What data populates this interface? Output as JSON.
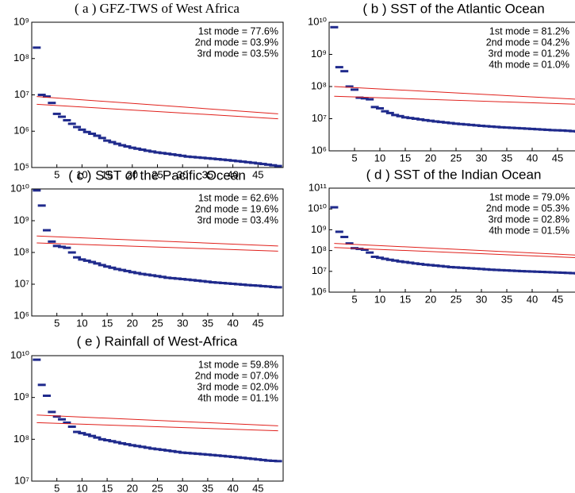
{
  "chart_data": [
    {
      "type": "scatter",
      "title": "( a ) GFZ-TWS of West Africa",
      "title_font": "serif",
      "ylog": true,
      "xlim": [
        0,
        50
      ],
      "xticks": [
        5,
        10,
        15,
        20,
        25,
        30,
        35,
        40,
        45
      ],
      "ylim": [
        100000.0,
        1000000000.0
      ],
      "yticks": [
        {
          "value": 100000.0,
          "label": "10⁵"
        },
        {
          "value": 1000000.0,
          "label": "10⁶"
        },
        {
          "value": 10000000.0,
          "label": "10⁷"
        },
        {
          "value": 100000000.0,
          "label": "10⁸"
        },
        {
          "value": 1000000000.0,
          "label": "10⁹"
        }
      ],
      "annotations": [
        "1st mode = 77.6%",
        "2nd mode = 03.9%",
        "3rd mode = 03.5%"
      ],
      "x": [
        1,
        2,
        3,
        4,
        5,
        6,
        7,
        8,
        9,
        10,
        11,
        12,
        13,
        14,
        15,
        16,
        17,
        18,
        19,
        20,
        21,
        22,
        23,
        24,
        25,
        26,
        27,
        28,
        29,
        30,
        31,
        32,
        33,
        34,
        35,
        36,
        37,
        38,
        39,
        40,
        41,
        42,
        43,
        44,
        45,
        46,
        47,
        48,
        49
      ],
      "series": [
        {
          "style": "marker",
          "color": "#1f2a8c",
          "values": [
            200000000.0,
            10000000.0,
            9000000.0,
            6000000.0,
            3000000.0,
            2500000.0,
            2000000.0,
            1600000.0,
            1300000.0,
            1100000.0,
            950000.0,
            850000.0,
            750000.0,
            650000.0,
            550000.0,
            500000.0,
            450000.0,
            410000.0,
            380000.0,
            350000.0,
            330000.0,
            310000.0,
            290000.0,
            275000.0,
            260000.0,
            250000.0,
            240000.0,
            230000.0,
            220000.0,
            210000.0,
            200000.0,
            195000.0,
            190000.0,
            185000.0,
            180000.0,
            175000.0,
            170000.0,
            165000.0,
            160000.0,
            155000.0,
            150000.0,
            145000.0,
            140000.0,
            135000.0,
            130000.0,
            125000.0,
            120000.0,
            115000.0,
            110000.0
          ]
        },
        {
          "style": "line",
          "color": "#e0201b",
          "x": [
            1,
            49
          ],
          "values": [
            9000000.0,
            3000000.0
          ]
        },
        {
          "style": "line",
          "color": "#e0201b",
          "x": [
            1,
            49
          ],
          "values": [
            5500000.0,
            2200000.0
          ]
        }
      ]
    },
    {
      "type": "scatter",
      "title": "( b ) SST of the Atlantic Ocean",
      "ylog": true,
      "xlim": [
        0,
        50
      ],
      "xticks": [
        5,
        10,
        15,
        20,
        25,
        30,
        35,
        40,
        45
      ],
      "ylim": [
        1000000.0,
        10000000000.0
      ],
      "yticks": [
        {
          "value": 1000000.0,
          "label": "10⁶"
        },
        {
          "value": 10000000.0,
          "label": "10⁷"
        },
        {
          "value": 100000000.0,
          "label": "10⁸"
        },
        {
          "value": 1000000000.0,
          "label": "10⁹"
        },
        {
          "value": 10000000000.0,
          "label": "10¹⁰"
        }
      ],
      "annotations": [
        "1st mode = 81.2%",
        "2nd mode = 04.2%",
        "3rd mode = 01.2%",
        "4th mode = 01.0%"
      ],
      "x": [
        1,
        2,
        3,
        4,
        5,
        6,
        7,
        8,
        9,
        10,
        11,
        12,
        13,
        14,
        15,
        16,
        17,
        18,
        19,
        20,
        21,
        22,
        23,
        24,
        25,
        26,
        27,
        28,
        29,
        30,
        31,
        32,
        33,
        34,
        35,
        36,
        37,
        38,
        39,
        40,
        41,
        42,
        43,
        44,
        45,
        46,
        47,
        48,
        49
      ],
      "series": [
        {
          "style": "marker",
          "color": "#1f2a8c",
          "values": [
            7000000000.0,
            400000000.0,
            300000000.0,
            100000000.0,
            80000000.0,
            45000000.0,
            43000000.0,
            40000000.0,
            23000000.0,
            21000000.0,
            17000000.0,
            15000000.0,
            13000000.0,
            12000000.0,
            11000000.0,
            10500000.0,
            10000000.0,
            9500000.0,
            9000000.0,
            8600000.0,
            8200000.0,
            7900000.0,
            7600000.0,
            7300000.0,
            7000000.0,
            6800000.0,
            6600000.0,
            6400000.0,
            6200000.0,
            6000000.0,
            5850000.0,
            5700000.0,
            5550000.0,
            5400000.0,
            5300000.0,
            5200000.0,
            5100000.0,
            5000000.0,
            4900000.0,
            4800000.0,
            4700000.0,
            4600000.0,
            4500000.0,
            4400000.0,
            4350000.0,
            4300000.0,
            4200000.0,
            4100000.0,
            4000000.0
          ]
        },
        {
          "style": "line",
          "color": "#e0201b",
          "x": [
            1,
            49
          ],
          "values": [
            100000000.0,
            40000000.0
          ]
        },
        {
          "style": "line",
          "color": "#e0201b",
          "x": [
            1,
            49
          ],
          "values": [
            50000000.0,
            28000000.0
          ]
        }
      ]
    },
    {
      "type": "scatter",
      "title": "( c ) SST of the Pacific Ocean",
      "ylog": true,
      "xlim": [
        0,
        50
      ],
      "xticks": [
        5,
        10,
        15,
        20,
        25,
        30,
        35,
        40,
        45
      ],
      "ylim": [
        1000000.0,
        10000000000.0
      ],
      "yticks": [
        {
          "value": 1000000.0,
          "label": "10⁶"
        },
        {
          "value": 10000000.0,
          "label": "10⁷"
        },
        {
          "value": 100000000.0,
          "label": "10⁸"
        },
        {
          "value": 1000000000.0,
          "label": "10⁹"
        },
        {
          "value": 10000000000.0,
          "label": "10¹⁰"
        }
      ],
      "annotations": [
        "1st mode = 62.6%",
        "2nd mode = 19.6%",
        "3rd mode = 03.4%"
      ],
      "x": [
        1,
        2,
        3,
        4,
        5,
        6,
        7,
        8,
        9,
        10,
        11,
        12,
        13,
        14,
        15,
        16,
        17,
        18,
        19,
        20,
        21,
        22,
        23,
        24,
        25,
        26,
        27,
        28,
        29,
        30,
        31,
        32,
        33,
        34,
        35,
        36,
        37,
        38,
        39,
        40,
        41,
        42,
        43,
        44,
        45,
        46,
        47,
        48,
        49
      ],
      "series": [
        {
          "style": "marker",
          "color": "#1f2a8c",
          "values": [
            9000000000.0,
            3000000000.0,
            500000000.0,
            220000000.0,
            160000000.0,
            150000000.0,
            140000000.0,
            100000000.0,
            70000000.0,
            60000000.0,
            55000000.0,
            50000000.0,
            45000000.0,
            40000000.0,
            36000000.0,
            33000000.0,
            30000000.0,
            28000000.0,
            26000000.0,
            24000000.0,
            22500000.0,
            21000000.0,
            20000000.0,
            19000000.0,
            18000000.0,
            17000000.0,
            16000000.0,
            15500000.0,
            15000000.0,
            14500000.0,
            14000000.0,
            13500000.0,
            13000000.0,
            12500000.0,
            12000000.0,
            11500000.0,
            11200000.0,
            10900000.0,
            10600000.0,
            10300000.0,
            10000000.0,
            9700000.0,
            9400000.0,
            9200000.0,
            9000000.0,
            8700000.0,
            8500000.0,
            8200000.0,
            8000000.0
          ]
        },
        {
          "style": "line",
          "color": "#e0201b",
          "x": [
            1,
            49
          ],
          "values": [
            330000000.0,
            160000000.0
          ]
        },
        {
          "style": "line",
          "color": "#e0201b",
          "x": [
            1,
            49
          ],
          "values": [
            200000000.0,
            110000000.0
          ]
        }
      ]
    },
    {
      "type": "scatter",
      "title": "( d ) SST of the Indian Ocean",
      "ylog": true,
      "xlim": [
        0,
        50
      ],
      "xticks": [
        5,
        10,
        15,
        20,
        25,
        30,
        35,
        40,
        45
      ],
      "ylim": [
        1000000.0,
        100000000000.0
      ],
      "yticks": [
        {
          "value": 1000000.0,
          "label": "10⁶"
        },
        {
          "value": 10000000.0,
          "label": "10⁷"
        },
        {
          "value": 100000000.0,
          "label": "10⁸"
        },
        {
          "value": 1000000000.0,
          "label": "10⁹"
        },
        {
          "value": 10000000000.0,
          "label": "10¹⁰"
        },
        {
          "value": 100000000000.0,
          "label": "10¹¹"
        }
      ],
      "annotations": [
        "1st mode = 79.0%",
        "2nd mode = 05.3%",
        "3rd mode = 02.8%",
        "4th mode = 01.5%"
      ],
      "x": [
        1,
        2,
        3,
        4,
        5,
        6,
        7,
        8,
        9,
        10,
        11,
        12,
        13,
        14,
        15,
        16,
        17,
        18,
        19,
        20,
        21,
        22,
        23,
        24,
        25,
        26,
        27,
        28,
        29,
        30,
        31,
        32,
        33,
        34,
        35,
        36,
        37,
        38,
        39,
        40,
        41,
        42,
        43,
        44,
        45,
        46,
        47,
        48,
        49
      ],
      "series": [
        {
          "style": "marker",
          "color": "#1f2a8c",
          "values": [
            12000000000.0,
            800000000.0,
            450000000.0,
            220000000.0,
            130000000.0,
            120000000.0,
            110000000.0,
            80000000.0,
            50000000.0,
            45000000.0,
            40000000.0,
            36000000.0,
            33000000.0,
            30000000.0,
            28000000.0,
            26000000.0,
            24000000.0,
            22500000.0,
            21000000.0,
            20000000.0,
            19000000.0,
            18000000.0,
            17000000.0,
            16000000.0,
            15500000.0,
            15000000.0,
            14500000.0,
            14000000.0,
            13500000.0,
            13000000.0,
            12500000.0,
            12000000.0,
            11700000.0,
            11400000.0,
            11100000.0,
            10800000.0,
            10500000.0,
            10200000.0,
            10000000.0,
            9800000.0,
            9600000.0,
            9400000.0,
            9200000.0,
            9000000.0,
            8800000.0,
            8600000.0,
            8400000.0,
            8200000.0,
            8000000.0
          ]
        },
        {
          "style": "line",
          "color": "#e0201b",
          "x": [
            1,
            49
          ],
          "values": [
            220000000.0,
            60000000.0
          ]
        },
        {
          "style": "line",
          "color": "#e0201b",
          "x": [
            1,
            49
          ],
          "values": [
            140000000.0,
            45000000.0
          ]
        }
      ]
    },
    {
      "type": "scatter",
      "title": "( e ) Rainfall of West-Africa",
      "ylog": true,
      "xlim": [
        0,
        50
      ],
      "xticks": [
        5,
        10,
        15,
        20,
        25,
        30,
        35,
        40,
        45
      ],
      "ylim": [
        10000000.0,
        10000000000.0
      ],
      "yticks": [
        {
          "value": 10000000.0,
          "label": "10⁷"
        },
        {
          "value": 100000000.0,
          "label": "10⁸"
        },
        {
          "value": 1000000000.0,
          "label": "10⁹"
        },
        {
          "value": 10000000000.0,
          "label": "10¹⁰"
        }
      ],
      "annotations": [
        "1st mode = 59.8%",
        "2nd mode = 07.0%",
        "3rd mode = 02.0%",
        "4th mode = 01.1%"
      ],
      "x": [
        1,
        2,
        3,
        4,
        5,
        6,
        7,
        8,
        9,
        10,
        11,
        12,
        13,
        14,
        15,
        16,
        17,
        18,
        19,
        20,
        21,
        22,
        23,
        24,
        25,
        26,
        27,
        28,
        29,
        30,
        31,
        32,
        33,
        34,
        35,
        36,
        37,
        38,
        39,
        40,
        41,
        42,
        43,
        44,
        45,
        46,
        47,
        48,
        49
      ],
      "series": [
        {
          "style": "marker",
          "color": "#1f2a8c",
          "values": [
            8000000000.0,
            2000000000.0,
            1100000000.0,
            450000000.0,
            350000000.0,
            300000000.0,
            250000000.0,
            200000000.0,
            150000000.0,
            140000000.0,
            130000000.0,
            120000000.0,
            110000000.0,
            100000000.0,
            95000000.0,
            90000000.0,
            85000000.0,
            80000000.0,
            76000000.0,
            72000000.0,
            69000000.0,
            66000000.0,
            63000000.0,
            60000000.0,
            58000000.0,
            56000000.0,
            54000000.0,
            52000000.0,
            50000000.0,
            48000000.0,
            47000000.0,
            46000000.0,
            45000000.0,
            44000000.0,
            43000000.0,
            42000000.0,
            41000000.0,
            40000000.0,
            39000000.0,
            38000000.0,
            37000000.0,
            36000000.0,
            35000000.0,
            34000000.0,
            33000000.0,
            32000000.0,
            31000000.0,
            30500000.0,
            30000000.0
          ]
        },
        {
          "style": "line",
          "color": "#e0201b",
          "x": [
            1,
            49
          ],
          "values": [
            380000000.0,
            210000000.0
          ]
        },
        {
          "style": "line",
          "color": "#e0201b",
          "x": [
            1,
            49
          ],
          "values": [
            250000000.0,
            160000000.0
          ]
        }
      ]
    }
  ]
}
